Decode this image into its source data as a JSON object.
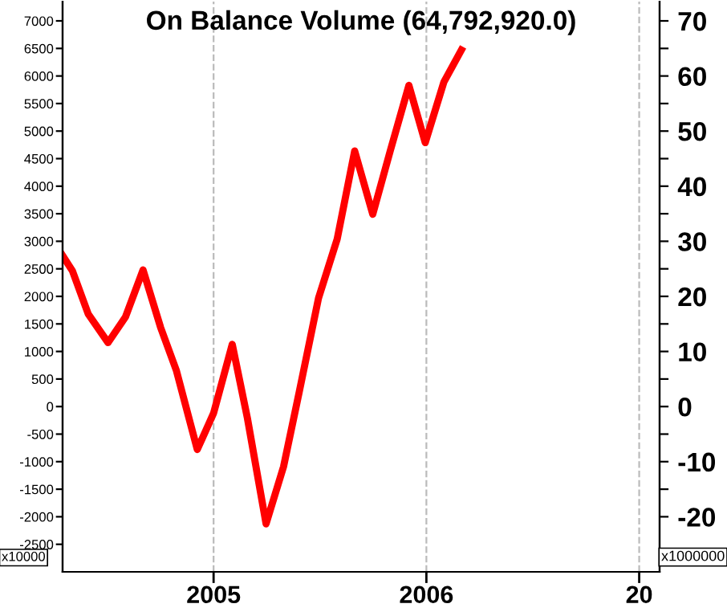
{
  "chart_data": {
    "type": "line",
    "title": "On Balance Volume (64,792,920.0)",
    "x": [
      "2004-04-17",
      "2004-05-04",
      "2004-05-31",
      "2004-07-04",
      "2004-08-03",
      "2004-09-02",
      "2004-10-02",
      "2004-10-29",
      "2004-12-04",
      "2005-01-01",
      "2005-02-02",
      "2005-02-28",
      "2005-04-01",
      "2005-05-01",
      "2005-05-28",
      "2005-06-30",
      "2005-08-01",
      "2005-08-31",
      "2005-10-01",
      "2005-10-31",
      "2005-12-02",
      "2005-12-30",
      "2006-01-31",
      "2006-03-02"
    ],
    "series": [
      {
        "color": "#ff0000",
        "values": [
          2740,
          2460,
          1680,
          1160,
          1630,
          2480,
          1440,
          660,
          -780,
          -120,
          1130,
          -210,
          -2130,
          -1090,
          270,
          1970,
          3040,
          4640,
          3490,
          4640,
          5830,
          4790,
          5890,
          6470
        ]
      }
    ],
    "xlim": [
      "2004-04-17",
      "2007-02-05"
    ],
    "xticks": [
      {
        "value": "2005",
        "label": "2005"
      },
      {
        "value": "2006",
        "label": "2006"
      },
      {
        "value": "2007",
        "label": "20"
      }
    ],
    "ylim": [
      -3000,
      7350
    ],
    "yticks": [
      -2500,
      -2000,
      -1500,
      -1000,
      -500,
      0,
      500,
      1000,
      1500,
      2000,
      2500,
      3000,
      3500,
      4000,
      4500,
      5000,
      5500,
      6000,
      6500,
      7000
    ],
    "y2lim": [
      -30,
      73.5
    ],
    "y2ticks": [
      -20,
      {
        "value": -15,
        "label": null
      },
      -10,
      {
        "value": -5,
        "label": null
      },
      0,
      {
        "value": 5,
        "label": null
      },
      10,
      {
        "value": 15,
        "label": null
      },
      20,
      {
        "value": 25,
        "label": null
      },
      30,
      {
        "value": 35,
        "label": null
      },
      40,
      {
        "value": 45,
        "label": null
      },
      50,
      {
        "value": 55,
        "label": null
      },
      60,
      {
        "value": 65,
        "label": null
      },
      70
    ],
    "grid": "x",
    "marker": "none",
    "line_style": "solid",
    "annotations": [
      "x10000",
      "x1000000"
    ]
  }
}
